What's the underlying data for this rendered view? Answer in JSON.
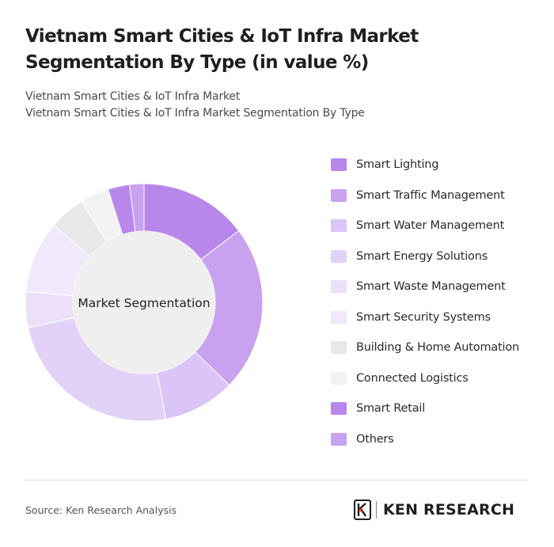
{
  "header": {
    "title": "Vietnam Smart Cities & IoT Infra Market Segmentation By Type (in value %)",
    "subtitle_1": "Vietnam Smart Cities & IoT Infra Market",
    "subtitle_2": "Vietnam Smart Cities & IoT Infra Market Segmentation By Type"
  },
  "chart_data": {
    "type": "pie",
    "center_label": "Market Segmentation",
    "legend_position": "right",
    "categories": [
      "Smart Lighting",
      "Smart Traffic Management",
      "Smart Water Management",
      "Smart Energy Solutions",
      "Smart Waste Management",
      "Smart Security Systems",
      "Building & Home Automation",
      "Connected Logistics",
      "Smart Retail",
      "Others"
    ],
    "values": [
      15,
      23,
      10,
      25,
      5,
      10,
      5,
      4,
      3,
      2
    ],
    "colors": [
      "#b987ec",
      "#c8a1ef",
      "#dbc4f6",
      "#e3d2f7",
      "#ebdffa",
      "#f1e9fb",
      "#e8e8e8",
      "#f2f2f2",
      "#b987ec",
      "#c8a1ef"
    ]
  },
  "footer": {
    "source": "Source: Ken Research Analysis",
    "logo_text": "KEN RESEARCH",
    "logo_icon": "ken-research-k-icon"
  }
}
